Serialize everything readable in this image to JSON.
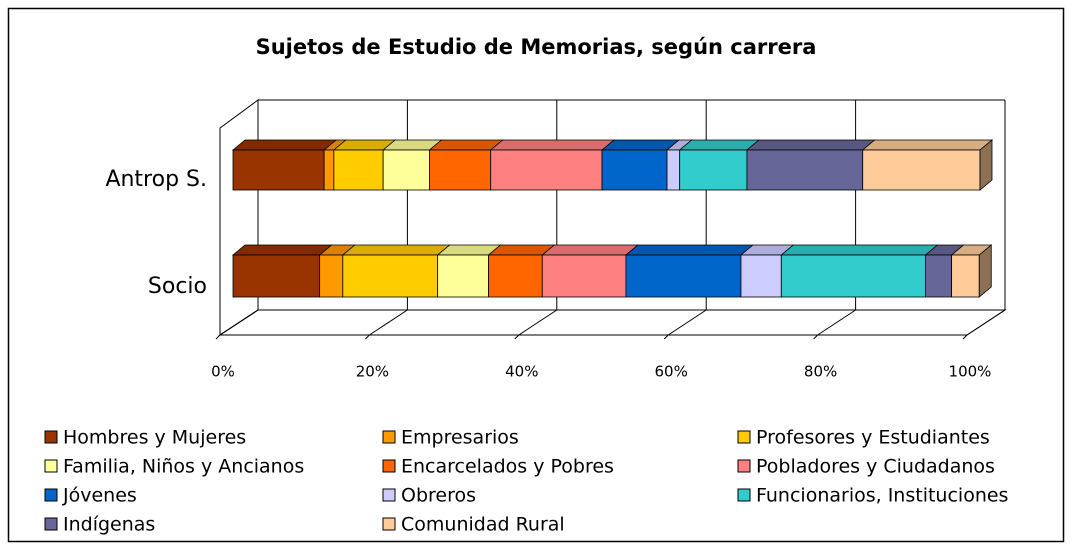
{
  "chart_data": {
    "type": "bar",
    "orientation": "horizontal",
    "stacked": "percent",
    "title": "Sujetos de Estudio de Memorias, según carrera",
    "categories": [
      "Antrop S.",
      "Socio"
    ],
    "series": [
      {
        "name": "Hombres y Mujeres",
        "color": "#993300",
        "values": [
          12.2,
          11.6
        ]
      },
      {
        "name": "Empresarios",
        "color": "#ff9900",
        "values": [
          1.3,
          3.1
        ]
      },
      {
        "name": "Profesores y Estudiantes",
        "color": "#ffcc00",
        "values": [
          6.6,
          12.7
        ]
      },
      {
        "name": "Familia, Niños y Ancianos",
        "color": "#ffff99",
        "values": [
          6.2,
          6.8
        ]
      },
      {
        "name": "Encarcelados y Pobres",
        "color": "#ff6600",
        "values": [
          8.2,
          7.2
        ]
      },
      {
        "name": "Pobladores y Ciudadanos",
        "color": "#ff8080",
        "values": [
          14.9,
          11.2
        ]
      },
      {
        "name": "Jóvenes",
        "color": "#0066cc",
        "values": [
          8.7,
          15.4
        ]
      },
      {
        "name": "Obreros",
        "color": "#ccccff",
        "values": [
          1.7,
          5.4
        ]
      },
      {
        "name": "Funcionarios, Instituciones",
        "color": "#33cccc",
        "values": [
          9.0,
          19.3
        ]
      },
      {
        "name": "Indígenas",
        "color": "#666699",
        "values": [
          15.5,
          3.5
        ]
      },
      {
        "name": "Comunidad Rural",
        "color": "#ffcc99",
        "values": [
          15.7,
          3.7
        ]
      }
    ],
    "xlim": [
      0,
      100
    ],
    "xticks": [
      {
        "value": 0,
        "label": "0%"
      },
      {
        "value": 20,
        "label": "20%"
      },
      {
        "value": 40,
        "label": "40%"
      },
      {
        "value": 60,
        "label": "60%"
      },
      {
        "value": 80,
        "label": "80%"
      },
      {
        "value": 100,
        "label": "100%"
      }
    ],
    "grid": true,
    "legend": "bottom"
  }
}
